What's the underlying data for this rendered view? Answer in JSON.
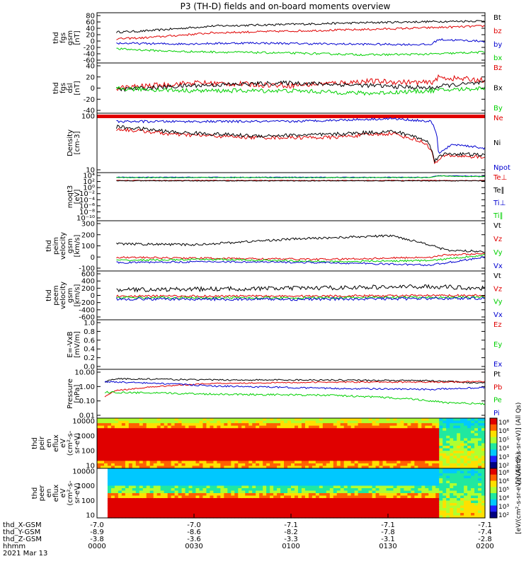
{
  "title": "P3 (TH-D) fields and on-board moments overview",
  "colors": {
    "black": "#000000",
    "red": "#e00000",
    "blue": "#0000d0",
    "green": "#00d000"
  },
  "chart_data": [
    {
      "type": "line",
      "panel": "fgs-gsm",
      "ylabel": [
        "thd",
        "fgs",
        "gsm",
        "[nT]"
      ],
      "yticks": [
        "80",
        "60",
        "40",
        "20",
        "0",
        "-20",
        "-40",
        "-60"
      ],
      "ylim": [
        -60,
        80
      ],
      "series": [
        {
          "name": "Bt",
          "color": "black",
          "anchors": [
            [
              0,
              25
            ],
            [
              0.12,
              30
            ],
            [
              0.3,
              45
            ],
            [
              0.5,
              50
            ],
            [
              0.7,
              55
            ],
            [
              0.86,
              58
            ],
            [
              1,
              60
            ]
          ],
          "noise": 3
        },
        {
          "name": "bz",
          "color": "red",
          "anchors": [
            [
              0,
              5
            ],
            [
              0.12,
              10
            ],
            [
              0.3,
              25
            ],
            [
              0.5,
              30
            ],
            [
              0.7,
              35
            ],
            [
              0.86,
              40
            ],
            [
              1,
              45
            ]
          ],
          "noise": 3
        },
        {
          "name": "by",
          "color": "blue",
          "anchors": [
            [
              0,
              -5
            ],
            [
              0.2,
              -8
            ],
            [
              0.4,
              -5
            ],
            [
              0.6,
              -8
            ],
            [
              0.86,
              -10
            ],
            [
              0.88,
              5
            ],
            [
              1,
              0
            ]
          ],
          "noise": 3
        },
        {
          "name": "bx",
          "color": "green",
          "anchors": [
            [
              0,
              -20
            ],
            [
              0.2,
              -30
            ],
            [
              0.5,
              -35
            ],
            [
              0.7,
              -40
            ],
            [
              0.86,
              -38
            ],
            [
              1,
              -32
            ]
          ],
          "noise": 3
        }
      ]
    },
    {
      "type": "line",
      "panel": "fgs-dsl",
      "ylabel": [
        "thd",
        "fgs",
        "dsl",
        "[nT]"
      ],
      "yticks": [
        "40",
        "20",
        "0",
        "-20",
        "-40"
      ],
      "ylim": [
        -50,
        40
      ],
      "series": [
        {
          "name": "Bz",
          "color": "red",
          "anchors": [
            [
              0,
              -30
            ],
            [
              0.05,
              -5
            ],
            [
              0.25,
              5
            ],
            [
              0.5,
              0
            ],
            [
              0.7,
              8
            ],
            [
              0.86,
              5
            ],
            [
              0.88,
              15
            ],
            [
              1,
              10
            ]
          ],
          "noise": 5
        },
        {
          "name": "Bx",
          "color": "black",
          "anchors": [
            [
              0,
              -10
            ],
            [
              0.25,
              0
            ],
            [
              0.5,
              5
            ],
            [
              0.7,
              0
            ],
            [
              0.86,
              -5
            ],
            [
              0.9,
              0
            ],
            [
              1,
              5
            ]
          ],
          "noise": 4
        },
        {
          "name": "By",
          "color": "green",
          "anchors": [
            [
              0,
              -5
            ],
            [
              0.25,
              -10
            ],
            [
              0.5,
              -10
            ],
            [
              0.7,
              -15
            ],
            [
              0.86,
              -10
            ],
            [
              1,
              -5
            ]
          ],
          "noise": 4
        }
      ]
    },
    {
      "type": "line",
      "panel": "density",
      "ylabel": [
        "Density",
        "[cm-3]"
      ],
      "yticks": [
        "100",
        "10"
      ],
      "ylim": [
        1,
        300
      ],
      "scale": "log",
      "series": [
        {
          "name": "Ne",
          "color": "red",
          "anchors": [
            [
              0,
              80
            ],
            [
              0.2,
              40
            ],
            [
              0.4,
              30
            ],
            [
              0.6,
              30
            ],
            [
              0.76,
              45
            ],
            [
              0.8,
              30
            ],
            [
              0.85,
              15
            ],
            [
              0.87,
              2
            ],
            [
              0.9,
              5
            ],
            [
              1,
              4
            ]
          ],
          "noise": 0.08
        },
        {
          "name": "Ni",
          "color": "black",
          "anchors": [
            [
              0,
              100
            ],
            [
              0.2,
              50
            ],
            [
              0.4,
              35
            ],
            [
              0.6,
              40
            ],
            [
              0.76,
              55
            ],
            [
              0.8,
              40
            ],
            [
              0.85,
              20
            ],
            [
              0.87,
              3
            ],
            [
              0.9,
              6
            ],
            [
              1,
              5
            ]
          ],
          "noise": 0.08
        },
        {
          "name": "Npot",
          "color": "blue",
          "anchors": [
            [
              0,
              150
            ],
            [
              0.3,
              150
            ],
            [
              0.5,
              150
            ],
            [
              0.76,
              200
            ],
            [
              0.86,
              150
            ],
            [
              0.88,
              5
            ],
            [
              0.92,
              15
            ],
            [
              1,
              10
            ]
          ],
          "noise": 0.05
        }
      ]
    },
    {
      "type": "line",
      "panel": "temperature",
      "ylabel": [
        "moqt3",
        "[eV]"
      ],
      "yticks": [
        "10⁴",
        "10²",
        "10⁰",
        "10⁻²",
        "10⁻⁴",
        "10⁻⁶",
        "10⁻⁸",
        "10⁻¹⁰"
      ],
      "ylim": [
        1e-10,
        10000.0
      ],
      "scale": "log",
      "series": [
        {
          "name": "Te⊥",
          "color": "red",
          "anchors": [
            [
              0,
              100
            ],
            [
              1,
              100
            ]
          ],
          "noise": 0.1
        },
        {
          "name": "Te∥",
          "color": "black",
          "anchors": [
            [
              0,
              80
            ],
            [
              1,
              80
            ]
          ],
          "noise": 0.1
        },
        {
          "name": "Ti⊥",
          "color": "blue",
          "anchors": [
            [
              0,
              1000
            ],
            [
              0.86,
              1000
            ],
            [
              0.88,
              3000
            ],
            [
              1,
              2000
            ]
          ],
          "noise": 0.1
        },
        {
          "name": "Ti∥",
          "color": "green",
          "anchors": [
            [
              0,
              800
            ],
            [
              0.86,
              800
            ],
            [
              0.88,
              2500
            ],
            [
              1,
              1500
            ]
          ],
          "noise": 0.1
        }
      ]
    },
    {
      "type": "line",
      "panel": "peim-velocity",
      "ylabel": [
        "thd",
        "peim",
        "velocity",
        "gsm",
        "[km/s]"
      ],
      "yticks": [
        "300",
        "200",
        "100",
        "0",
        "-100"
      ],
      "ylim": [
        -120,
        300
      ],
      "series": [
        {
          "name": "Vt",
          "color": "black",
          "anchors": [
            [
              0,
              110
            ],
            [
              0.25,
              100
            ],
            [
              0.5,
              150
            ],
            [
              0.76,
              180
            ],
            [
              0.86,
              100
            ],
            [
              0.9,
              50
            ],
            [
              1,
              40
            ]
          ],
          "noise": 10
        },
        {
          "name": "Vz",
          "color": "red",
          "anchors": [
            [
              0,
              -10
            ],
            [
              0.3,
              -20
            ],
            [
              0.6,
              -30
            ],
            [
              0.86,
              -10
            ],
            [
              0.9,
              10
            ],
            [
              1,
              20
            ]
          ],
          "noise": 8
        },
        {
          "name": "Vy",
          "color": "green",
          "anchors": [
            [
              0,
              -40
            ],
            [
              0.3,
              -30
            ],
            [
              0.6,
              -50
            ],
            [
              0.86,
              -40
            ],
            [
              1,
              10
            ]
          ],
          "noise": 8
        },
        {
          "name": "Vx",
          "color": "blue",
          "anchors": [
            [
              0,
              -60
            ],
            [
              0.3,
              -50
            ],
            [
              0.6,
              -60
            ],
            [
              0.86,
              -80
            ],
            [
              1,
              -10
            ]
          ],
          "noise": 8
        }
      ]
    },
    {
      "type": "line",
      "panel": "peem-velocity",
      "ylabel": [
        "thd",
        "peem",
        "velocity",
        "gsm",
        "[km/s]"
      ],
      "yticks": [
        "600",
        "400",
        "200",
        "0",
        "-200",
        "-400",
        "-600"
      ],
      "ylim": [
        -650,
        650
      ],
      "series": [
        {
          "name": "Vt",
          "color": "black",
          "anchors": [
            [
              0,
              150
            ],
            [
              0.5,
              200
            ],
            [
              0.86,
              250
            ],
            [
              1,
              200
            ]
          ],
          "noise": 60
        },
        {
          "name": "Vz",
          "color": "red",
          "anchors": [
            [
              0,
              -20
            ],
            [
              0.5,
              -20
            ],
            [
              1,
              0
            ]
          ],
          "noise": 30
        },
        {
          "name": "Vy",
          "color": "green",
          "anchors": [
            [
              0,
              -60
            ],
            [
              0.5,
              -70
            ],
            [
              1,
              -50
            ]
          ],
          "noise": 30
        },
        {
          "name": "Vx",
          "color": "blue",
          "anchors": [
            [
              0,
              -100
            ],
            [
              0.5,
              -110
            ],
            [
              1,
              -80
            ]
          ],
          "noise": 40
        }
      ]
    },
    {
      "type": "line",
      "panel": "efield",
      "ylabel": [
        "E=-VxB",
        "[mV/m]"
      ],
      "yticks": [
        "1.0",
        "0.8",
        "0.6",
        "0.4",
        "0.2",
        "0.0"
      ],
      "ylim": [
        0,
        1
      ],
      "series": [
        {
          "name": "Ez",
          "color": "red",
          "anchors": [],
          "noise": 0
        },
        {
          "name": "Ey",
          "color": "green",
          "anchors": [],
          "noise": 0
        },
        {
          "name": "Ex",
          "color": "blue",
          "anchors": [],
          "noise": 0
        }
      ]
    },
    {
      "type": "line",
      "panel": "pressure",
      "ylabel": [
        "Pressure",
        "[nPa]"
      ],
      "yticks": [
        "10.00",
        "1.00",
        "0.10",
        "0.01"
      ],
      "ylim": [
        0.01,
        10
      ],
      "scale": "log",
      "series": [
        {
          "name": "Pt",
          "color": "black",
          "anchors": [
            [
              0,
              1.2
            ],
            [
              0.05,
              3
            ],
            [
              0.3,
              2.5
            ],
            [
              0.6,
              2.5
            ],
            [
              0.86,
              2.2
            ],
            [
              1,
              1.5
            ]
          ],
          "noise": 0.05
        },
        {
          "name": "Pb",
          "color": "red",
          "anchors": [
            [
              0,
              0.02
            ],
            [
              0.05,
              0.5
            ],
            [
              0.3,
              1.5
            ],
            [
              0.6,
              1.8
            ],
            [
              0.86,
              1.8
            ],
            [
              1,
              2
            ]
          ],
          "noise": 0.04
        },
        {
          "name": "Pe",
          "color": "green",
          "anchors": [
            [
              0,
              0.4
            ],
            [
              0.3,
              0.3
            ],
            [
              0.6,
              0.25
            ],
            [
              0.8,
              0.15
            ],
            [
              0.9,
              0.08
            ],
            [
              1,
              0.07
            ]
          ],
          "noise": 0.06
        },
        {
          "name": "Pi",
          "color": "blue",
          "anchors": [
            [
              0,
              2
            ],
            [
              0.3,
              1
            ],
            [
              0.6,
              0.7
            ],
            [
              0.86,
              0.6
            ],
            [
              1,
              0.8
            ]
          ],
          "noise": 0.05
        }
      ]
    },
    {
      "type": "heatmap",
      "panel": "peir-eflux",
      "ylabel": [
        "thd",
        "peir",
        "en",
        "eflux",
        "eV",
        "(cm²-s-",
        "sr-eV)"
      ],
      "yticks": [
        "10000",
        "1000",
        "100",
        "10"
      ],
      "colorbar": {
        "label": "[eV/(cm²-s-sr-eV)] (All Qs)",
        "ticks": [
          "10⁸",
          "10⁶",
          "10⁵",
          "10⁴",
          "10³",
          "10²"
        ]
      }
    },
    {
      "type": "heatmap",
      "panel": "peer-eflux",
      "ylabel": [
        "thd",
        "peer",
        "en",
        "eflux",
        "eV",
        "(cm²-s-",
        "sr-eV)"
      ],
      "yticks": [
        "10000",
        "1000",
        "100",
        "10"
      ],
      "colorbar": {
        "label": "[eV/(cm²-s-sr-eV)] (All Qs)",
        "ticks": [
          "10⁸",
          "10⁶",
          "10⁵",
          "10⁴",
          "10³",
          "10²"
        ]
      }
    }
  ],
  "xaxis": {
    "rows": [
      {
        "name": "thd_X-GSM",
        "values": [
          "-7.0",
          "-7.0",
          "-7.1",
          "-7.1",
          "-7.1"
        ]
      },
      {
        "name": "thd_Y-GSM",
        "values": [
          "-8.9",
          "-8.6",
          "-8.2",
          "-7.8",
          "-7.4"
        ]
      },
      {
        "name": "thd_Z-GSM",
        "values": [
          "-3.8",
          "-3.6",
          "-3.3",
          "-3.1",
          "-2.8"
        ]
      },
      {
        "name": "hhmm",
        "values": [
          "0000",
          "0030",
          "0100",
          "0130",
          "0200"
        ]
      }
    ],
    "date": "2021 Mar 13"
  }
}
